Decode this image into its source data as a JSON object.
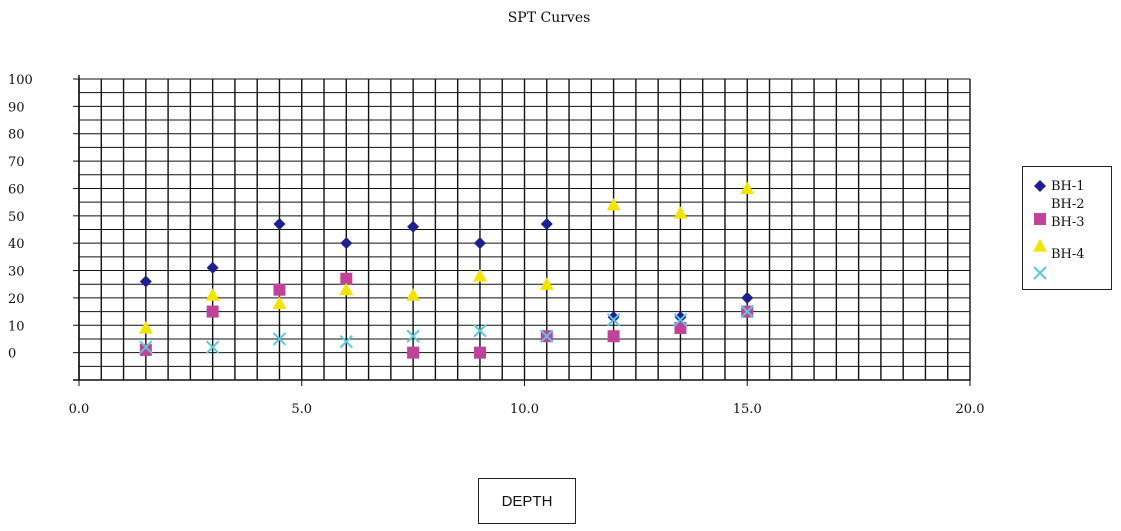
{
  "chart_data": {
    "type": "scatter",
    "title": "SPT Curves",
    "xlabel": "DEPTH",
    "ylabel": "",
    "xlim": [
      0,
      20
    ],
    "ylim": [
      -10,
      100
    ],
    "x_ticks": [
      "0.0",
      "5.0",
      "10.0",
      "15.0",
      "20.0"
    ],
    "y_ticks": [
      "0",
      "10",
      "20",
      "30",
      "40",
      "50",
      "60",
      "70",
      "80",
      "90",
      "100"
    ],
    "grid": true,
    "legend_position": "right",
    "legend_labels": [
      "BH-1",
      "BH-2",
      "BH-3",
      "BH-4"
    ],
    "series": [
      {
        "marker": "diamond",
        "color": "#1f1f8f",
        "points": [
          [
            1.5,
            26
          ],
          [
            3.0,
            31
          ],
          [
            4.5,
            47
          ],
          [
            6.0,
            40
          ],
          [
            7.5,
            46
          ],
          [
            9.0,
            40
          ],
          [
            10.5,
            47
          ],
          [
            12.0,
            13
          ],
          [
            13.5,
            13
          ],
          [
            15.0,
            20
          ]
        ]
      },
      {
        "marker": "square",
        "color": "#c0439a",
        "points": [
          [
            1.5,
            1
          ],
          [
            3.0,
            15
          ],
          [
            4.5,
            23
          ],
          [
            6.0,
            27
          ],
          [
            7.5,
            0
          ],
          [
            9.0,
            0
          ],
          [
            10.5,
            6
          ],
          [
            12.0,
            6
          ],
          [
            13.5,
            9
          ],
          [
            15.0,
            15
          ]
        ]
      },
      {
        "marker": "triangle",
        "color": "#f2e400",
        "points": [
          [
            1.5,
            9
          ],
          [
            3.0,
            21
          ],
          [
            4.5,
            18
          ],
          [
            6.0,
            23
          ],
          [
            7.5,
            21
          ],
          [
            9.0,
            28
          ],
          [
            10.5,
            25
          ],
          [
            12.0,
            54
          ],
          [
            13.5,
            51
          ],
          [
            15.0,
            60
          ]
        ]
      },
      {
        "marker": "x",
        "color": "#5bc8dc",
        "points": [
          [
            1.5,
            2
          ],
          [
            3.0,
            2
          ],
          [
            4.5,
            5
          ],
          [
            6.0,
            4
          ],
          [
            7.5,
            6
          ],
          [
            9.0,
            8
          ],
          [
            10.5,
            6
          ],
          [
            12.0,
            12
          ],
          [
            13.5,
            12
          ],
          [
            15.0,
            15
          ]
        ]
      }
    ]
  }
}
